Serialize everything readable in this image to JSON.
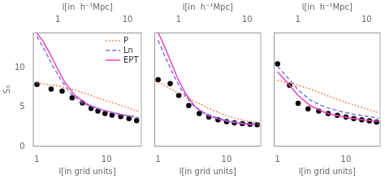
{
  "chart_data": [
    {
      "type": "line",
      "log": "x",
      "grid": false,
      "legend": "upper right",
      "xlabel": "l[in grid units]",
      "x2label": "l[in  h⁻¹Mpc]",
      "ylabel": "S₃",
      "xlim": [
        0.88,
        32.0
      ],
      "xticks": [
        1,
        10
      ],
      "x2lim": [
        0.44,
        16.0
      ],
      "x2ticks": [
        1,
        10
      ],
      "ylim": [
        0,
        14.5
      ],
      "yticks": [
        0,
        5,
        10
      ],
      "series": [
        {
          "name": "P",
          "color": "#ff6633",
          "line_style": "dotted",
          "x": [
            1.0,
            2.0,
            3.5,
            6.0,
            10.0,
            18.0,
            30.0
          ],
          "values": [
            8.1,
            7.7,
            7.2,
            6.5,
            5.8,
            5.1,
            4.4
          ]
        },
        {
          "name": "Ln",
          "color": "#7777ee",
          "line_style": "dashed",
          "x": [
            1.0,
            1.3,
            1.7,
            2.2,
            3.0,
            4.5,
            7.0,
            11.0,
            18.0,
            30.0
          ],
          "values": [
            14.0,
            12.2,
            10.2,
            8.5,
            6.8,
            5.5,
            4.9,
            4.4,
            4.0,
            3.6
          ]
        },
        {
          "name": "EPT",
          "color": "#ee44bb",
          "line_style": "solid",
          "x": [
            1.0,
            1.2,
            1.5,
            1.9,
            2.5,
            3.5,
            5.5,
            9.0,
            15.0,
            25.0
          ],
          "values": [
            14.4,
            13.5,
            12.0,
            10.2,
            8.2,
            6.5,
            5.3,
            4.6,
            4.1,
            3.8
          ]
        },
        {
          "type": "scatter",
          "color": "black",
          "marker": "o",
          "x": [
            1.0,
            1.6,
            2.3,
            3.2,
            4.5,
            6.0,
            7.5,
            9.5,
            12.0,
            16.0,
            21.0,
            27.0
          ],
          "values": [
            7.9,
            7.3,
            7.05,
            6.2,
            5.55,
            4.85,
            4.5,
            4.2,
            4.0,
            3.8,
            3.55,
            3.3
          ]
        }
      ]
    },
    {
      "type": "line",
      "log": "x",
      "grid": false,
      "tick_labels": "x",
      "xlabel": "l[in grid units]",
      "x2label": "l[in  h⁻¹Mpc]",
      "xlim": [
        0.88,
        32.0
      ],
      "xticks": [
        1,
        10
      ],
      "x2lim": [
        0.44,
        16.0
      ],
      "x2ticks": [
        1,
        10
      ],
      "ylim": [
        0,
        14.5
      ],
      "yticks": [
        0,
        5,
        10
      ],
      "series": [
        {
          "name": "P",
          "color": "#ff6633",
          "line_style": "dotted",
          "x": [
            1.0,
            2.0,
            3.5,
            6.0,
            10.0,
            18.0,
            30.0
          ],
          "values": [
            8.2,
            6.8,
            5.7,
            4.7,
            3.9,
            3.3,
            2.95
          ]
        },
        {
          "name": "Ln",
          "color": "#7777ee",
          "line_style": "dashed",
          "x": [
            1.0,
            1.3,
            1.7,
            2.2,
            3.0,
            4.5,
            7.0,
            11.0,
            18.0,
            30.0
          ],
          "values": [
            13.5,
            11.2,
            9.0,
            7.2,
            5.5,
            4.3,
            3.7,
            3.2,
            2.95,
            2.8
          ]
        },
        {
          "name": "EPT",
          "color": "#ee44bb",
          "line_style": "solid",
          "x": [
            1.0,
            1.2,
            1.5,
            1.9,
            2.5,
            3.5,
            5.5,
            9.0,
            15.0,
            25.0
          ],
          "values": [
            14.5,
            13.0,
            11.0,
            8.8,
            6.8,
            5.0,
            3.9,
            3.3,
            2.95,
            2.75
          ]
        },
        {
          "type": "scatter",
          "color": "black",
          "marker": "o",
          "x": [
            1.0,
            1.5,
            2.0,
            2.8,
            4.0,
            5.5,
            7.5,
            10.0,
            13.0,
            17.0,
            22.0,
            28.0
          ],
          "values": [
            8.5,
            8.0,
            6.5,
            5.2,
            4.2,
            3.75,
            3.4,
            3.15,
            3.0,
            2.9,
            2.82,
            2.78
          ]
        }
      ]
    },
    {
      "type": "line",
      "log": "x",
      "grid": false,
      "tick_labels": "x",
      "xlabel": "l[in grid units]",
      "x2label": "l[in  h⁻¹Mpc]",
      "xlim": [
        0.88,
        32.0
      ],
      "xticks": [
        1,
        10
      ],
      "x2lim": [
        0.44,
        16.0
      ],
      "x2ticks": [
        1,
        10
      ],
      "ylim": [
        0,
        14.5
      ],
      "yticks": [
        0,
        5,
        10
      ],
      "series": [
        {
          "name": "P",
          "color": "#ff6633",
          "line_style": "dotted",
          "x": [
            1.0,
            2.0,
            3.5,
            6.0,
            10.0,
            18.0,
            30.0
          ],
          "values": [
            8.4,
            7.8,
            7.1,
            6.3,
            5.6,
            4.9,
            4.3
          ]
        },
        {
          "name": "Ln",
          "color": "#7777ee",
          "line_style": "dashed",
          "x": [
            1.0,
            1.5,
            2.0,
            3.0,
            5.0,
            8.0,
            13.0,
            20.0,
            30.0
          ],
          "values": [
            10.2,
            8.5,
            7.2,
            5.9,
            5.0,
            4.5,
            4.1,
            3.85,
            3.6
          ]
        },
        {
          "name": "EPT",
          "color": "#ee44bb",
          "line_style": "solid",
          "x": [
            1.0,
            1.5,
            2.0,
            3.0,
            5.0,
            8.0,
            13.0,
            20.0,
            30.0
          ],
          "values": [
            9.5,
            7.8,
            6.5,
            5.2,
            4.3,
            3.85,
            3.55,
            3.35,
            3.2
          ]
        },
        {
          "type": "scatter",
          "color": "black",
          "marker": "o",
          "x": [
            1.0,
            1.5,
            2.0,
            2.8,
            4.0,
            5.5,
            7.5,
            10.0,
            13.0,
            17.0,
            22.0,
            28.0
          ],
          "values": [
            10.5,
            7.8,
            5.5,
            4.8,
            4.5,
            4.2,
            3.95,
            3.75,
            3.55,
            3.4,
            3.25,
            3.1
          ]
        }
      ]
    }
  ]
}
